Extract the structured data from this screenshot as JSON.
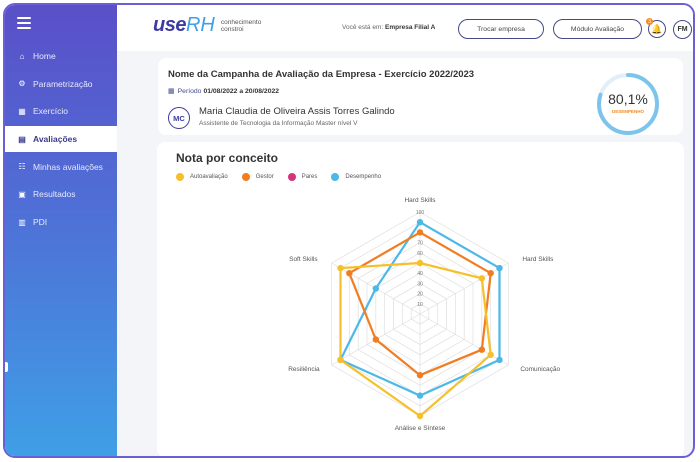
{
  "nav": {
    "items": [
      {
        "label": "Home",
        "icon": "home-icon",
        "glyph": "⌂"
      },
      {
        "label": "Parametrização",
        "icon": "gear-icon",
        "glyph": "⚙"
      },
      {
        "label": "Exercício",
        "icon": "calendar-icon",
        "glyph": "▦"
      },
      {
        "label": "Avaliações",
        "icon": "clipboard-icon",
        "glyph": "▤"
      },
      {
        "label": "Minhas avaliações",
        "icon": "list-icon",
        "glyph": "☷"
      },
      {
        "label": "Resultados",
        "icon": "report-icon",
        "glyph": "▣"
      },
      {
        "label": "PDI",
        "icon": "bar-chart-icon",
        "glyph": "▥"
      }
    ],
    "active_index": 3
  },
  "header": {
    "logo_use": "use",
    "logo_rh": "RH",
    "logo_tag_1": "conhecimento",
    "logo_tag_2": "constroi",
    "location_prefix": "Você está em:",
    "location_company": "Empresa Filial A",
    "switch_company_label": "Trocar empresa",
    "module_label": "Módulo Avaliação",
    "bell_badge": "3",
    "user_initials": "FM"
  },
  "campaign": {
    "title": "Nome da Campanha de Avaliação da Empresa - Exercício 2022/2023",
    "period_label": "Período",
    "period_value": "01/08/2022 a 20/08/2022",
    "person_initials": "MC",
    "person_name": "Maria Claudia de Oliveira Assis Torres Galindo",
    "person_role": "Assistente de Tecnologia da Informação Master nível V",
    "score": "80,1%",
    "score_fraction": 0.801,
    "score_label": "DESEMPENHO"
  },
  "chart_data": {
    "type": "radar",
    "title": "Nota por conceito",
    "axes": [
      "Hard Skills",
      "Hard Skills",
      "Comunicação",
      "Análise e Síntese",
      "Resiliência",
      "Soft Skills"
    ],
    "rmax": 100,
    "ticks": [
      "10",
      "20",
      "30",
      "40",
      "50",
      "60",
      "70",
      "80",
      "90",
      "100"
    ],
    "series": [
      {
        "name": "Autoavaliação",
        "color": "#f5c02a",
        "values": [
          50,
          70,
          80,
          100,
          90,
          90
        ]
      },
      {
        "name": "Gestor",
        "color": "#f07d22",
        "values": [
          80,
          80,
          70,
          60,
          50,
          80
        ]
      },
      {
        "name": "Pares",
        "color": "#d6337a",
        "values": []
      },
      {
        "name": "Desempenho",
        "color": "#4cb8e8",
        "values": [
          90,
          90,
          90,
          80,
          90,
          50
        ]
      }
    ],
    "legend_position": "top-left"
  }
}
